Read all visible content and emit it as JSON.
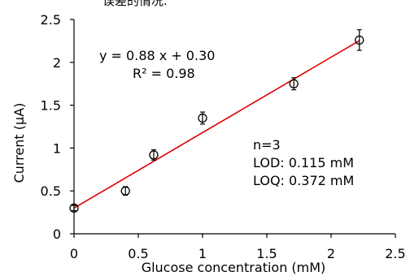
{
  "top_text_fragment": "误差的情况.",
  "chart_data": {
    "type": "scatter",
    "xlabel": "Glucose concentration (mM)",
    "ylabel": "Current (μA)",
    "xlim": [
      0,
      2.5
    ],
    "ylim": [
      0,
      2.5
    ],
    "x_ticks": [
      "0",
      "0.5",
      "1",
      "1.5",
      "2",
      "2.5"
    ],
    "y_ticks": [
      "0",
      "0.5",
      "1",
      "1.5",
      "2",
      "2.5"
    ],
    "grid": false,
    "series": [
      {
        "marker": "open-circle",
        "points": [
          {
            "x": 0.0,
            "y": 0.3,
            "err": 0.03
          },
          {
            "x": 0.4,
            "y": 0.5,
            "err": 0.05
          },
          {
            "x": 0.62,
            "y": 0.92,
            "err": 0.06
          },
          {
            "x": 1.0,
            "y": 1.35,
            "err": 0.07
          },
          {
            "x": 1.71,
            "y": 1.75,
            "err": 0.07
          },
          {
            "x": 2.22,
            "y": 2.26,
            "err": 0.12
          }
        ]
      }
    ],
    "fit": {
      "slope": 0.88,
      "intercept": 0.3,
      "x_range": [
        0,
        2.22
      ],
      "color": "#e00000",
      "equation": "y = 0.88 x + 0.30",
      "r2": "R² = 0.98"
    },
    "annotations": [
      "n=3",
      "LOD: 0.115 mM",
      "LOQ: 0.372 mM"
    ]
  }
}
